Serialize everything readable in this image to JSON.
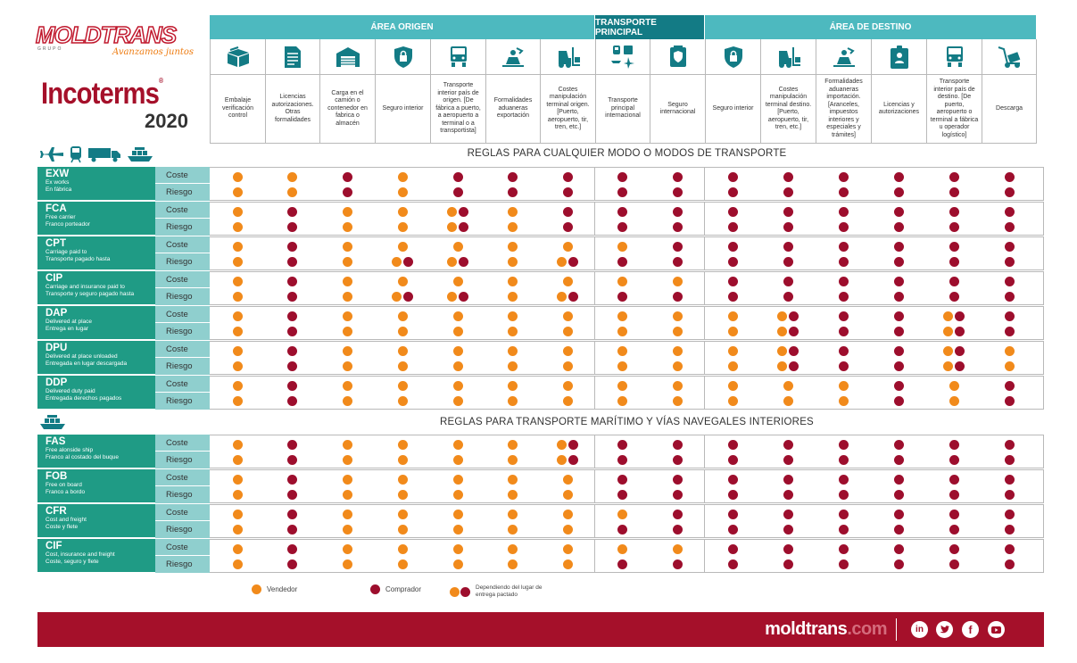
{
  "brand": {
    "name": "MOLDTRANS",
    "grupo": "GRUPO",
    "slogan": "Avanzamos juntos",
    "title": "Incoterms",
    "reg": "®",
    "year": "2020"
  },
  "groups": [
    {
      "label": "ÁREA ORIGEN",
      "span": 7,
      "dark": false
    },
    {
      "label": "TRANSPORTE PRINCIPAL",
      "span": 2,
      "dark": true
    },
    {
      "label": "ÁREA DE DESTINO",
      "span": 6,
      "dark": false
    }
  ],
  "columns": [
    {
      "label": "Embalaje verificación control",
      "icon": "box-icon"
    },
    {
      "label": "Licencias autorizaciones. Otras formalidades",
      "icon": "document-icon"
    },
    {
      "label": "Carga en el camión o contenedor en fabrica o almacén",
      "icon": "warehouse-icon"
    },
    {
      "label": "Seguro interior",
      "icon": "shield-icon"
    },
    {
      "label": "Transporte interior país de origen. [De fábrica a puerto, a aeropuerto a terminal o a transportista]",
      "icon": "truck-icon"
    },
    {
      "label": "Formalidades aduaneras exportación",
      "icon": "customs-icon"
    },
    {
      "label": "Costes manipulación terminal origen. [Puerto, aeropuerto, tir, tren, etc.]",
      "icon": "forklift-icon"
    },
    {
      "label": "Transporte principal internacional",
      "icon": "transport-icon"
    },
    {
      "label": "Seguro internacional",
      "icon": "insurance-icon"
    },
    {
      "label": "Seguro interior",
      "icon": "shield-icon"
    },
    {
      "label": "Costes manipulación terminal destino. [Puerto, aeropuerto, tir, tren, etc.]",
      "icon": "forklift-icon"
    },
    {
      "label": "Formalidades aduaneras importación. [Aranceles, impuestos interiores y especiales y trámites]",
      "icon": "customs-icon"
    },
    {
      "label": "Licencias y autorizaciones",
      "icon": "license-icon"
    },
    {
      "label": "Transporte interior país de destino. [De puerto, aeropuerto o terminal a fábrica u operador logístico]",
      "icon": "truck-icon"
    },
    {
      "label": "Descarga",
      "icon": "unload-icon"
    }
  ],
  "sections": [
    {
      "title": "REGLAS PARA CUALQUIER MODO O MODOS DE TRANSPORTE",
      "icons": [
        "plane-icon",
        "train-icon",
        "truck-icon",
        "ship-icon"
      ]
    },
    {
      "title": "REGLAS PARA TRANSPORTE MARÍTIMO Y VÍAS NAVEGALES INTERIORES",
      "icons": [
        "ship-icon"
      ]
    }
  ],
  "sub_labels": {
    "cost": "Coste",
    "risk": "Riesgo"
  },
  "terms": [
    {
      "code": "EXW",
      "en": "Ex works",
      "es": "En fábrica",
      "section": 0,
      "cost": [
        "V",
        "V",
        "C",
        "V",
        "C",
        "C",
        "C",
        "C",
        "C",
        "C",
        "C",
        "C",
        "C",
        "C",
        "C"
      ],
      "risk": [
        "V",
        "V",
        "C",
        "V",
        "C",
        "C",
        "C",
        "C",
        "C",
        "C",
        "C",
        "C",
        "C",
        "C",
        "C"
      ]
    },
    {
      "code": "FCA",
      "en": "Free carrier",
      "es": "Franco porteador",
      "section": 0,
      "cost": [
        "V",
        "C",
        "V",
        "V",
        "VC",
        "V",
        "C",
        "C",
        "C",
        "C",
        "C",
        "C",
        "C",
        "C",
        "C"
      ],
      "risk": [
        "V",
        "C",
        "V",
        "V",
        "VC",
        "V",
        "C",
        "C",
        "C",
        "C",
        "C",
        "C",
        "C",
        "C",
        "C"
      ]
    },
    {
      "code": "CPT",
      "en": "Carriage paid to",
      "es": "Transporte pagado hasta",
      "section": 0,
      "cost": [
        "V",
        "C",
        "V",
        "V",
        "V",
        "V",
        "V",
        "V",
        "C",
        "C",
        "C",
        "C",
        "C",
        "C",
        "C"
      ],
      "risk": [
        "V",
        "C",
        "V",
        "VC",
        "VC",
        "V",
        "VC",
        "C",
        "C",
        "C",
        "C",
        "C",
        "C",
        "C",
        "C"
      ]
    },
    {
      "code": "CIP",
      "en": "Carriage and insurance paid to",
      "es": "Transporte y seguro pagado hasta",
      "section": 0,
      "cost": [
        "V",
        "C",
        "V",
        "V",
        "V",
        "V",
        "V",
        "V",
        "V",
        "C",
        "C",
        "C",
        "C",
        "C",
        "C"
      ],
      "risk": [
        "V",
        "C",
        "V",
        "VC",
        "VC",
        "V",
        "VC",
        "C",
        "C",
        "C",
        "C",
        "C",
        "C",
        "C",
        "C"
      ]
    },
    {
      "code": "DAP",
      "en": "Delivered at place",
      "es": "Entrega en lugar",
      "section": 0,
      "cost": [
        "V",
        "C",
        "V",
        "V",
        "V",
        "V",
        "V",
        "V",
        "V",
        "V",
        "VC",
        "C",
        "C",
        "VC",
        "C"
      ],
      "risk": [
        "V",
        "C",
        "V",
        "V",
        "V",
        "V",
        "V",
        "V",
        "V",
        "V",
        "VC",
        "C",
        "C",
        "VC",
        "C"
      ]
    },
    {
      "code": "DPU",
      "en": "Delivered at place unloaded",
      "es": "Entregada en lugar descargada",
      "section": 0,
      "cost": [
        "V",
        "C",
        "V",
        "V",
        "V",
        "V",
        "V",
        "V",
        "V",
        "V",
        "VC",
        "C",
        "C",
        "VC",
        "V"
      ],
      "risk": [
        "V",
        "C",
        "V",
        "V",
        "V",
        "V",
        "V",
        "V",
        "V",
        "V",
        "VC",
        "C",
        "C",
        "VC",
        "V"
      ]
    },
    {
      "code": "DDP",
      "en": "Delivered duty paid",
      "es": "Entregada derechos pagados",
      "section": 0,
      "cost": [
        "V",
        "C",
        "V",
        "V",
        "V",
        "V",
        "V",
        "V",
        "V",
        "V",
        "V",
        "V",
        "C",
        "V",
        "C"
      ],
      "risk": [
        "V",
        "C",
        "V",
        "V",
        "V",
        "V",
        "V",
        "V",
        "V",
        "V",
        "V",
        "V",
        "C",
        "V",
        "C"
      ]
    },
    {
      "code": "FAS",
      "en": "Free alonside ship",
      "es": "Franco al costado del buque",
      "section": 1,
      "cost": [
        "V",
        "C",
        "V",
        "V",
        "V",
        "V",
        "VC",
        "C",
        "C",
        "C",
        "C",
        "C",
        "C",
        "C",
        "C"
      ],
      "risk": [
        "V",
        "C",
        "V",
        "V",
        "V",
        "V",
        "VC",
        "C",
        "C",
        "C",
        "C",
        "C",
        "C",
        "C",
        "C"
      ]
    },
    {
      "code": "FOB",
      "en": "Free on board",
      "es": "Franco a bordo",
      "section": 1,
      "cost": [
        "V",
        "C",
        "V",
        "V",
        "V",
        "V",
        "V",
        "C",
        "C",
        "C",
        "C",
        "C",
        "C",
        "C",
        "C"
      ],
      "risk": [
        "V",
        "C",
        "V",
        "V",
        "V",
        "V",
        "V",
        "C",
        "C",
        "C",
        "C",
        "C",
        "C",
        "C",
        "C"
      ]
    },
    {
      "code": "CFR",
      "en": "Cost and freight",
      "es": "Coste y flete",
      "section": 1,
      "cost": [
        "V",
        "C",
        "V",
        "V",
        "V",
        "V",
        "V",
        "V",
        "C",
        "C",
        "C",
        "C",
        "C",
        "C",
        "C"
      ],
      "risk": [
        "V",
        "C",
        "V",
        "V",
        "V",
        "V",
        "V",
        "C",
        "C",
        "C",
        "C",
        "C",
        "C",
        "C",
        "C"
      ]
    },
    {
      "code": "CIF",
      "en": "Cost, insurance and freight",
      "es": "Coste, seguro y flete",
      "section": 1,
      "cost": [
        "V",
        "C",
        "V",
        "V",
        "V",
        "V",
        "V",
        "V",
        "V",
        "C",
        "C",
        "C",
        "C",
        "C",
        "C"
      ],
      "risk": [
        "V",
        "C",
        "V",
        "V",
        "V",
        "V",
        "V",
        "C",
        "C",
        "C",
        "C",
        "C",
        "C",
        "C",
        "C"
      ]
    }
  ],
  "legend": {
    "seller": "Vendedor",
    "buyer": "Comprador",
    "depends": "Dependiendo del lugar de entrega pactado"
  },
  "colors": {
    "seller": "#f18a1b",
    "buyer": "#9d0e2d",
    "teal": "#4db9bf",
    "teal_dark": "#137b85",
    "term": "#1f9b85",
    "sub": "#8fcfce",
    "footer": "#a5102a"
  },
  "footer": {
    "site": "moldtrans",
    "tld": ".com",
    "social": [
      "linkedin-icon",
      "twitter-icon",
      "facebook-icon",
      "youtube-icon"
    ]
  }
}
